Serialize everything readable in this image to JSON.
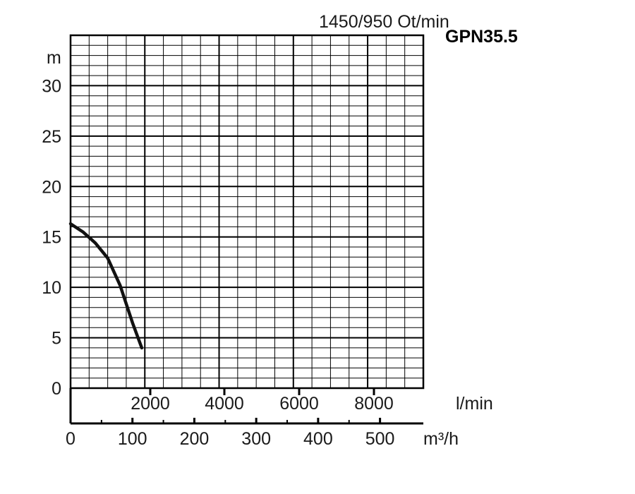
{
  "chart_data": {
    "type": "line",
    "title": "1450/950 Ot/min",
    "model": "GPN35.5",
    "ylabel": "m",
    "ylim": [
      0,
      35
    ],
    "yticks": [
      "0",
      "5",
      "10",
      "15",
      "20",
      "25",
      "30"
    ],
    "lpm_label": "l/min",
    "lpm_ticks": [
      "2000",
      "4000",
      "6000",
      "8000"
    ],
    "flow_label": "m³/h",
    "flow_ticks": [
      "0",
      "100",
      "200",
      "300",
      "400",
      "500"
    ],
    "xlim_m3h": [
      0,
      570
    ],
    "grid": true,
    "series": [
      {
        "x": [
          0,
          20,
          40,
          60,
          80,
          100,
          115
        ],
        "y": [
          16.3,
          15.5,
          14.4,
          12.9,
          10.2,
          6.5,
          4.0
        ]
      }
    ]
  },
  "colors": {
    "curve": "#111111",
    "grid": "#000000"
  }
}
